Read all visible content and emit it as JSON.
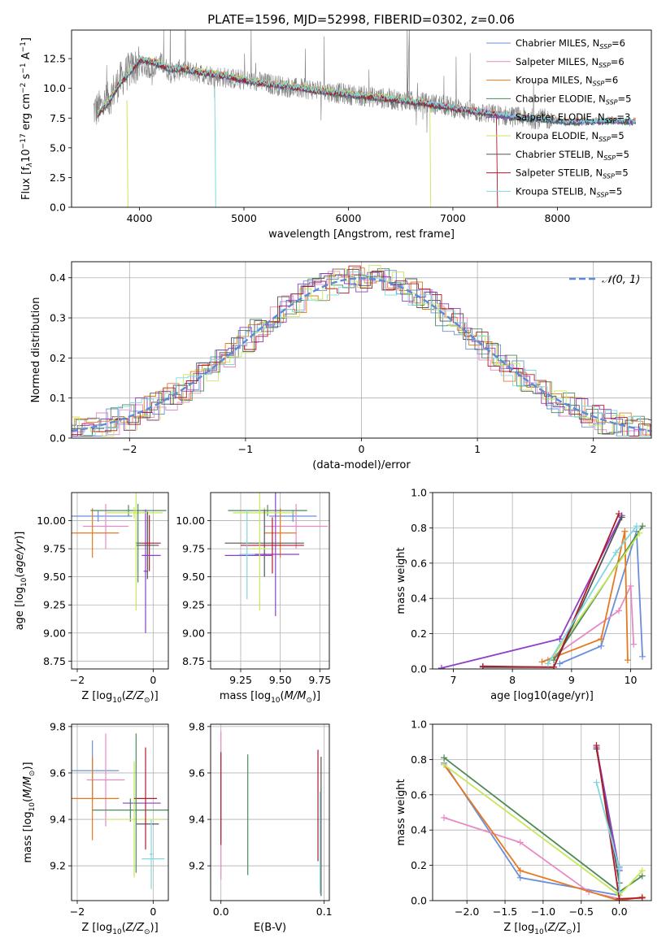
{
  "title": "PLATE=1596, MJD=52998, FIBERID=0302, z=0.06",
  "colors": {
    "chabrier_miles": "#6a8fd8",
    "salpeter_miles": "#e78ac3",
    "kroupa_miles": "#e6791f",
    "chabrier_elodie": "#4c8a5a",
    "salpeter_elodie": "#8e3fc7",
    "kroupa_elodie": "#c8e65a",
    "chabrier_stelib": "#555555",
    "salpeter_stelib": "#b01a2a",
    "kroupa_stelib": "#7fd8dc",
    "data": "#808080",
    "normal": "#5b8ad8"
  },
  "chart_data": [
    {
      "id": "spectrum",
      "type": "line",
      "xlabel": "wavelength [Angstrom, rest frame]",
      "ylabel": "Flux [f_λ10^-17 erg cm^-2 s^-1 A^-1]",
      "xlim": [
        3350,
        8900
      ],
      "ylim": [
        0,
        14.9
      ],
      "xticks": [
        4000,
        5000,
        6000,
        7000,
        8000
      ],
      "yticks": [
        0.0,
        2.5,
        5.0,
        7.5,
        10.0,
        12.5
      ],
      "ytick_labels": [
        "0.0",
        "2.5",
        "5.0",
        "7.5",
        "10.0",
        "12.5"
      ],
      "legend_position": "top-right",
      "legend": [
        {
          "prefix": "Chabrier MILES, N",
          "sub": "SSP",
          "suffix": "=6",
          "color": "#6a8fd8"
        },
        {
          "prefix": "Salpeter MILES, N",
          "sub": "SSP",
          "suffix": "=6",
          "color": "#e78ac3"
        },
        {
          "prefix": "Kroupa MILES, N",
          "sub": "SSP",
          "suffix": "=6",
          "color": "#e6791f"
        },
        {
          "prefix": "Chabrier ELODIE, N",
          "sub": "SSP",
          "suffix": "=5",
          "color": "#4c8a5a"
        },
        {
          "prefix": "Salpeter ELODIE, N",
          "sub": "SSP",
          "suffix": "=3",
          "color": "#8e3fc7"
        },
        {
          "prefix": "Kroupa ELODIE, N",
          "sub": "SSP",
          "suffix": "=5",
          "color": "#c8e65a"
        },
        {
          "prefix": "Chabrier STELIB, N",
          "sub": "SSP",
          "suffix": "=5",
          "color": "#555555"
        },
        {
          "prefix": "Salpeter STELIB, N",
          "sub": "SSP",
          "suffix": "=5",
          "color": "#b01a2a"
        },
        {
          "prefix": "Kroupa STELIB, N",
          "sub": "SSP",
          "suffix": "=5",
          "color": "#7fd8dc"
        }
      ],
      "data_continuum": [
        [
          3600,
          8.2
        ],
        [
          3700,
          9.0
        ],
        [
          3800,
          10.5
        ],
        [
          3900,
          11.5
        ],
        [
          4000,
          12.0
        ],
        [
          4100,
          11.6
        ],
        [
          4200,
          12.2
        ],
        [
          4300,
          11.3
        ],
        [
          4400,
          11.6
        ],
        [
          4500,
          11.4
        ],
        [
          4700,
          11.1
        ],
        [
          4900,
          10.8
        ],
        [
          5100,
          10.6
        ],
        [
          5300,
          10.3
        ],
        [
          5500,
          10.0
        ],
        [
          5700,
          9.9
        ],
        [
          5900,
          9.6
        ],
        [
          6100,
          9.4
        ],
        [
          6300,
          9.2
        ],
        [
          6500,
          9.0
        ],
        [
          6700,
          8.8
        ],
        [
          6900,
          8.6
        ],
        [
          7100,
          8.2
        ],
        [
          7300,
          7.9
        ],
        [
          7500,
          7.7
        ],
        [
          7700,
          7.5
        ],
        [
          7900,
          7.4
        ]
      ],
      "model_continuum": [
        [
          3600,
          7.8
        ],
        [
          3700,
          8.8
        ],
        [
          3800,
          10.3
        ],
        [
          3900,
          11.3
        ],
        [
          4000,
          12.4
        ],
        [
          4100,
          12.3
        ],
        [
          4200,
          12.0
        ],
        [
          4300,
          11.6
        ],
        [
          4400,
          11.7
        ],
        [
          4500,
          11.5
        ],
        [
          4700,
          11.2
        ],
        [
          4900,
          10.9
        ],
        [
          5100,
          10.5
        ],
        [
          5300,
          10.3
        ],
        [
          5500,
          10.1
        ],
        [
          5700,
          9.8
        ],
        [
          5900,
          9.6
        ],
        [
          6100,
          9.4
        ],
        [
          6300,
          9.2
        ],
        [
          6500,
          9.0
        ],
        [
          6700,
          8.8
        ],
        [
          6900,
          8.5
        ],
        [
          7100,
          8.2
        ],
        [
          7300,
          8.0
        ],
        [
          7500,
          7.7
        ],
        [
          7700,
          7.5
        ],
        [
          7900,
          7.4
        ],
        [
          8100,
          7.2
        ],
        [
          8300,
          7.2
        ],
        [
          8500,
          7.3
        ],
        [
          8700,
          7.2
        ]
      ]
    },
    {
      "id": "residuals",
      "type": "line",
      "xlabel": "(data-model)/error",
      "ylabel": "Normed distribution",
      "xlim": [
        -2.5,
        2.5
      ],
      "ylim": [
        0,
        0.44
      ],
      "xticks": [
        -2,
        -1,
        0,
        1,
        2
      ],
      "xtick_labels": [
        "−2",
        "−1",
        "0",
        "1",
        "2"
      ],
      "yticks": [
        0.0,
        0.1,
        0.2,
        0.3,
        0.4
      ],
      "ytick_labels": [
        "0.0",
        "0.1",
        "0.2",
        "0.3",
        "0.4"
      ],
      "grid": true,
      "legend_position": "top-right",
      "normal_label": "𝒩(0, 1)",
      "bin_width": 0.1
    },
    {
      "id": "age-vs-Z",
      "type": "scatter",
      "xlabel_prefix": "Z [log",
      "xlabel_sub": "10",
      "xlabel_mid": "(",
      "xlabel_italic": "Z/Z",
      "xlabel_sun": "⊙",
      "xlabel_suffix": ")]",
      "ylabel": "age  [log10(age/yr)]",
      "xlim": [
        -2.15,
        0.4
      ],
      "ylim": [
        8.68,
        10.25
      ],
      "xticks": [
        -2,
        0
      ],
      "xtick_labels": [
        "−2",
        "0"
      ],
      "yticks": [
        8.75,
        9.0,
        9.25,
        9.5,
        9.75,
        10.0
      ],
      "ytick_labels": [
        "8.75",
        "9.00",
        "9.25",
        "9.50",
        "9.75",
        "10.00"
      ],
      "grid": true,
      "points": [
        {
          "x": -1.45,
          "xe": 0.9,
          "y": 10.04,
          "ye": 0.05,
          "color": "#6a8fd8"
        },
        {
          "x": -1.25,
          "xe": 0.6,
          "y": 9.95,
          "ye": 0.2,
          "color": "#e78ac3"
        },
        {
          "x": -1.6,
          "xe": 0.7,
          "y": 9.89,
          "ye": 0.22,
          "color": "#e6791f"
        },
        {
          "x": -0.65,
          "xe": 1.0,
          "y": 10.09,
          "ye": 0.05,
          "color": "#4c8a5a"
        },
        {
          "x": -0.2,
          "xe": 0.05,
          "y": 9.55,
          "ye": 0.55,
          "color": "#8e3fc7"
        },
        {
          "x": -0.5,
          "xe": 0.75,
          "y": 10.07,
          "ye": 0.05,
          "color": "#c8e65a"
        },
        {
          "x": -0.15,
          "xe": 0.3,
          "y": 9.78,
          "ye": 0.3,
          "color": "#555555"
        },
        {
          "x": -0.1,
          "xe": 0.3,
          "y": 9.8,
          "ye": 0.25,
          "color": "#b01a2a"
        },
        {
          "x": -0.05,
          "xe": 0.25,
          "y": 9.69,
          "ye": 0.0,
          "color": "#8e3fc7"
        },
        {
          "x": -0.45,
          "xe": 0.05,
          "y": 9.75,
          "ye": 0.55,
          "color": "#c8e65a"
        },
        {
          "x": -0.4,
          "xe": 0.05,
          "y": 9.8,
          "ye": 0.35,
          "color": "#4c8a5a"
        }
      ]
    },
    {
      "id": "age-vs-mass",
      "type": "scatter",
      "xlabel_prefix": "mass [log",
      "xlabel_sub": "10",
      "xlabel_mid": "(",
      "xlabel_italic": "M/M",
      "xlabel_sun": "⊙",
      "xlabel_suffix": ")]",
      "ylabel": "",
      "xlim": [
        9.06,
        9.81
      ],
      "ylim": [
        8.68,
        10.25
      ],
      "xticks": [
        9.25,
        9.5,
        9.75
      ],
      "xtick_labels": [
        "9.25",
        "9.50",
        "9.75"
      ],
      "yticks": [
        8.75,
        9.0,
        9.25,
        9.5,
        9.75,
        10.0
      ],
      "ytick_labels": [
        "8.75",
        "9.00",
        "9.25",
        "9.50",
        "9.75",
        "10.00"
      ],
      "grid": true,
      "points": [
        {
          "x": 9.58,
          "xe": 0.15,
          "y": 10.04,
          "ye": 0.05,
          "color": "#6a8fd8"
        },
        {
          "x": 9.6,
          "xe": 0.2,
          "y": 9.95,
          "ye": 0.2,
          "color": "#e78ac3"
        },
        {
          "x": 9.5,
          "xe": 0.1,
          "y": 9.89,
          "ye": 0.22,
          "color": "#e6791f"
        },
        {
          "x": 9.42,
          "xe": 0.25,
          "y": 10.09,
          "ye": 0.05,
          "color": "#4c8a5a"
        },
        {
          "x": 9.47,
          "xe": 0.15,
          "y": 9.7,
          "ye": 0.55,
          "color": "#8e3fc7"
        },
        {
          "x": 9.4,
          "xe": 0.2,
          "y": 10.07,
          "ye": 0.05,
          "color": "#c8e65a"
        },
        {
          "x": 9.4,
          "xe": 0.25,
          "y": 9.8,
          "ye": 0.3,
          "color": "#555555"
        },
        {
          "x": 9.45,
          "xe": 0.2,
          "y": 9.78,
          "ye": 0.25,
          "color": "#b01a2a"
        },
        {
          "x": 9.3,
          "xe": 0.15,
          "y": 9.69,
          "ye": 0.0,
          "color": "#8e3fc7"
        },
        {
          "x": 9.37,
          "xe": 0.05,
          "y": 9.75,
          "ye": 0.55,
          "color": "#c8e65a"
        },
        {
          "x": 9.29,
          "xe": 0.05,
          "y": 9.7,
          "ye": 0.4,
          "color": "#7fd8dc"
        }
      ]
    },
    {
      "id": "mass-weight-vs-age",
      "type": "line",
      "xlabel": "age  [log10(age/yr)]",
      "ylabel": "mass weight",
      "xlim": [
        6.65,
        10.35
      ],
      "ylim": [
        0,
        1.0
      ],
      "xticks": [
        7,
        8,
        9,
        10
      ],
      "xtick_labels": [
        "7",
        "8",
        "9",
        "10"
      ],
      "yticks": [
        0,
        0.2,
        0.4,
        0.6,
        0.8,
        1.0
      ],
      "ytick_labels": [
        "0.0",
        "0.2",
        "0.4",
        "0.6",
        "0.8",
        "1.0"
      ],
      "grid": true,
      "series": [
        {
          "color": "#6a8fd8",
          "x": [
            8.8,
            9.5,
            10.1,
            10.2
          ],
          "y": [
            0.03,
            0.13,
            0.78,
            0.07
          ]
        },
        {
          "color": "#e78ac3",
          "x": [
            8.6,
            9.8,
            10.0,
            10.05
          ],
          "y": [
            0.05,
            0.33,
            0.47,
            0.14
          ]
        },
        {
          "color": "#e6791f",
          "x": [
            8.5,
            9.5,
            9.9,
            9.95
          ],
          "y": [
            0.04,
            0.17,
            0.78,
            0.05
          ]
        },
        {
          "color": "#4c8a5a",
          "x": [
            8.7,
            10.2
          ],
          "y": [
            0.05,
            0.81
          ]
        },
        {
          "color": "#8e3fc7",
          "x": [
            6.8,
            8.8,
            9.85
          ],
          "y": [
            0.005,
            0.17,
            0.87
          ]
        },
        {
          "color": "#c8e65a",
          "x": [
            8.6,
            10.15
          ],
          "y": [
            0.03,
            0.77
          ]
        },
        {
          "color": "#555555",
          "x": [
            7.5,
            8.7,
            9.85
          ],
          "y": [
            0.01,
            0.01,
            0.86
          ]
        },
        {
          "color": "#b01a2a",
          "x": [
            7.5,
            8.7,
            9.8
          ],
          "y": [
            0.015,
            0.01,
            0.88
          ]
        },
        {
          "color": "#7fd8dc",
          "x": [
            8.6,
            9.75,
            10.1
          ],
          "y": [
            0.03,
            0.66,
            0.81
          ]
        }
      ]
    },
    {
      "id": "mass-vs-Z",
      "type": "scatter",
      "xlabel_prefix": "Z [log",
      "xlabel_sub": "10",
      "xlabel_mid": "(",
      "xlabel_italic": "Z/Z",
      "xlabel_sun": "⊙",
      "xlabel_suffix": ")]",
      "ylabel": "mass [log10(M/M⊙)]",
      "xlim": [
        -2.15,
        0.4
      ],
      "ylim": [
        9.05,
        9.81
      ],
      "xticks": [
        -2,
        0
      ],
      "xtick_labels": [
        "−2",
        "0"
      ],
      "yticks": [
        9.2,
        9.4,
        9.6,
        9.8
      ],
      "ytick_labels": [
        "9.2",
        "9.4",
        "9.6",
        "9.8"
      ],
      "grid": true,
      "points": [
        {
          "x": -1.6,
          "xe": 0.7,
          "y": 9.61,
          "ye": 0.13,
          "color": "#6a8fd8"
        },
        {
          "x": -1.25,
          "xe": 0.5,
          "y": 9.57,
          "ye": 0.2,
          "color": "#e78ac3"
        },
        {
          "x": -1.6,
          "xe": 0.7,
          "y": 9.49,
          "ye": 0.18,
          "color": "#e6791f"
        },
        {
          "x": -0.6,
          "xe": 1.0,
          "y": 9.44,
          "ye": 0.05,
          "color": "#4c8a5a"
        },
        {
          "x": -0.3,
          "xe": 0.5,
          "y": 9.47,
          "ye": 0.0,
          "color": "#8e3fc7"
        },
        {
          "x": -0.5,
          "xe": 0.75,
          "y": 9.4,
          "ye": 0.25,
          "color": "#c8e65a"
        },
        {
          "x": -0.15,
          "xe": 0.3,
          "y": 9.38,
          "ye": 0.0,
          "color": "#555555"
        },
        {
          "x": -0.2,
          "xe": 0.3,
          "y": 9.49,
          "ye": 0.22,
          "color": "#b01a2a"
        },
        {
          "x": 0.0,
          "xe": 0.3,
          "y": 9.23,
          "ye": 0.0,
          "color": "#7fd8dc"
        },
        {
          "x": -0.45,
          "xe": 0.05,
          "y": 9.47,
          "ye": 0.3,
          "color": "#4c8a5a"
        },
        {
          "x": -0.05,
          "xe": 0.05,
          "y": 9.25,
          "ye": 0.15,
          "color": "#7fd8dc"
        }
      ]
    },
    {
      "id": "mass-vs-EBV",
      "type": "scatter",
      "xlabel": "E(B-V)",
      "ylabel": "",
      "xlim": [
        -0.01,
        0.105
      ],
      "ylim": [
        9.05,
        9.81
      ],
      "xticks": [
        0.0,
        0.1
      ],
      "xtick_labels": [
        "0.0",
        "0.1"
      ],
      "yticks": [
        9.2,
        9.4,
        9.6,
        9.8
      ],
      "ytick_labels": [
        "9.2",
        "9.4",
        "9.6",
        "9.8"
      ],
      "grid": true,
      "points": [
        {
          "x": 0.0,
          "xe": 0.0,
          "y": 9.46,
          "ye": 0.32,
          "color": "#e78ac3"
        },
        {
          "x": 0.0,
          "xe": 0.0,
          "y": 9.49,
          "ye": 0.2,
          "color": "#b01a2a"
        },
        {
          "x": 0.026,
          "xe": 0.0,
          "y": 9.42,
          "ye": 0.26,
          "color": "#4c8a5a"
        },
        {
          "x": 0.094,
          "xe": 0.0,
          "y": 9.46,
          "ye": 0.24,
          "color": "#b01a2a"
        },
        {
          "x": 0.097,
          "xe": 0.0,
          "y": 9.37,
          "ye": 0.3,
          "color": "#555555"
        },
        {
          "x": 0.096,
          "xe": 0.0,
          "y": 9.3,
          "ye": 0.22,
          "color": "#7fd8dc"
        }
      ]
    },
    {
      "id": "mass-weight-vs-Z",
      "type": "line",
      "xlabel_prefix": "Z [log",
      "xlabel_sub": "10",
      "xlabel_mid": "(",
      "xlabel_italic": "Z/Z",
      "xlabel_sun": "⊙",
      "xlabel_suffix": ")]",
      "ylabel": "mass weight",
      "xlim": [
        -2.45,
        0.42
      ],
      "ylim": [
        0,
        1.0
      ],
      "xticks": [
        -2.0,
        -1.5,
        -1.0,
        -0.5,
        0.0
      ],
      "xtick_labels": [
        "−2.0",
        "−1.5",
        "−1.0",
        "−0.5",
        "0.0"
      ],
      "yticks": [
        0,
        0.2,
        0.4,
        0.6,
        0.8,
        1.0
      ],
      "ytick_labels": [
        "0.0",
        "0.2",
        "0.4",
        "0.6",
        "0.8",
        "1.0"
      ],
      "grid": true,
      "series": [
        {
          "color": "#6a8fd8",
          "x": [
            -2.3,
            -1.3,
            0.0,
            0.0
          ],
          "y": [
            0.78,
            0.13,
            0.03,
            0.19
          ]
        },
        {
          "color": "#e78ac3",
          "x": [
            -2.3,
            -1.3,
            -0.4,
            0.0
          ],
          "y": [
            0.47,
            0.33,
            0.05,
            0.01
          ]
        },
        {
          "color": "#e6791f",
          "x": [
            -2.3,
            -1.3,
            0.0,
            0.3
          ],
          "y": [
            0.77,
            0.17,
            0.0,
            0.02
          ]
        },
        {
          "color": "#4c8a5a",
          "x": [
            -2.3,
            0.0,
            0.3
          ],
          "y": [
            0.81,
            0.05,
            0.14
          ]
        },
        {
          "color": "#8e3fc7",
          "x": [
            -0.3,
            0.0,
            0.0
          ],
          "y": [
            0.87,
            0.17,
            0.01
          ]
        },
        {
          "color": "#c8e65a",
          "x": [
            -2.3,
            0.0,
            0.3
          ],
          "y": [
            0.77,
            0.03,
            0.17
          ]
        },
        {
          "color": "#555555",
          "x": [
            -0.3,
            0.0,
            0.0
          ],
          "y": [
            0.86,
            0.1,
            0.01
          ]
        },
        {
          "color": "#b01a2a",
          "x": [
            -0.3,
            0.0,
            0.3
          ],
          "y": [
            0.88,
            0.01,
            0.015
          ]
        },
        {
          "color": "#7fd8dc",
          "x": [
            -0.3,
            0.0,
            0.0
          ],
          "y": [
            0.67,
            0.18,
            0.05
          ]
        }
      ]
    }
  ]
}
